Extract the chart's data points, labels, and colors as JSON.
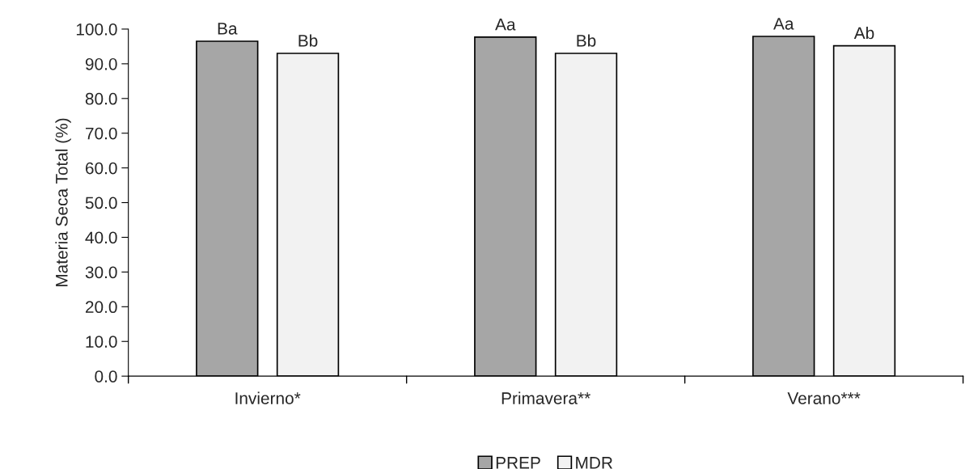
{
  "chart_data": {
    "type": "bar",
    "ylabel": "Materia Seca Total (%)",
    "categories": [
      "Invierno*",
      "Primavera**",
      "Verano***"
    ],
    "series": [
      {
        "name": "PREP",
        "color": "#a6a6a6",
        "values": [
          96.5,
          97.7,
          97.9
        ],
        "value_labels": [
          "Ba",
          "Aa",
          "Aa"
        ]
      },
      {
        "name": "MDR",
        "color": "#f2f2f2",
        "values": [
          93.0,
          93.0,
          95.2
        ],
        "value_labels": [
          "Bb",
          "Bb",
          "Ab"
        ]
      }
    ],
    "ylim": [
      0,
      100
    ],
    "yticks": [
      {
        "value": 0,
        "label": "0.0"
      },
      {
        "value": 10,
        "label": "10.0"
      },
      {
        "value": 20,
        "label": "20.0"
      },
      {
        "value": 30,
        "label": "30.0"
      },
      {
        "value": 40,
        "label": "40.0"
      },
      {
        "value": 50,
        "label": "50.0"
      },
      {
        "value": 60,
        "label": "60.0"
      },
      {
        "value": 70,
        "label": "70.0"
      },
      {
        "value": 80,
        "label": "80.0"
      },
      {
        "value": 90,
        "label": "90.0"
      },
      {
        "value": 100,
        "label": "100.0"
      }
    ],
    "grid": false,
    "legend": "bottom"
  }
}
